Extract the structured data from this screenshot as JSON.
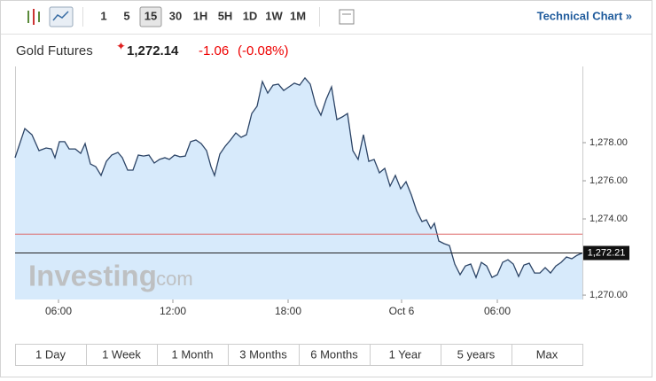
{
  "toolbar": {
    "intervals": [
      "1",
      "5",
      "15",
      "30",
      "1H",
      "5H",
      "1D",
      "1W",
      "1M"
    ],
    "selected": "15",
    "link": "Technical Chart »"
  },
  "header": {
    "name": "Gold Futures",
    "price": "1,272.14",
    "change": "-1.06",
    "change_percent": "(-0.08%)"
  },
  "watermark": {
    "brand": "Investing",
    "suffix": ".com"
  },
  "ranges": [
    "1 Day",
    "1 Week",
    "1 Month",
    "3 Months",
    "6 Months",
    "1 Year",
    "5 years",
    "Max"
  ],
  "chart_data": {
    "type": "area",
    "color": "#2c4466",
    "fill": "#d7eafb",
    "x": [
      0,
      11,
      19,
      27,
      35,
      41,
      45,
      50,
      56,
      61,
      68,
      74,
      79,
      85,
      91,
      97,
      103,
      109,
      116,
      121,
      127,
      133,
      139,
      145,
      151,
      157,
      163,
      169,
      174,
      180,
      186,
      192,
      198,
      204,
      210,
      216,
      221,
      225,
      231,
      237,
      243,
      249,
      255,
      261,
      267,
      273,
      279,
      285,
      291,
      297,
      303,
      309,
      315,
      321,
      327,
      333,
      339,
      345,
      351,
      357,
      363,
      369,
      375,
      381,
      387,
      393,
      399,
      405,
      411,
      417,
      423,
      429,
      435,
      441,
      447,
      453,
      459,
      464,
      469,
      473,
      478,
      484,
      490,
      496,
      502,
      508,
      514,
      520,
      526,
      532,
      538,
      544,
      550,
      556,
      562,
      568,
      574,
      580,
      586,
      592,
      598,
      604,
      610,
      616,
      622,
      628,
      634,
      640
    ],
    "values": [
      1277.21,
      1278.74,
      1278.42,
      1277.58,
      1277.72,
      1277.67,
      1277.21,
      1278.05,
      1278.05,
      1277.67,
      1277.67,
      1277.44,
      1277.95,
      1276.88,
      1276.74,
      1276.28,
      1277.02,
      1277.35,
      1277.49,
      1277.21,
      1276.56,
      1276.56,
      1277.35,
      1277.3,
      1277.35,
      1276.93,
      1277.12,
      1277.21,
      1277.12,
      1277.35,
      1277.26,
      1277.3,
      1278.05,
      1278.14,
      1277.95,
      1277.58,
      1276.74,
      1276.28,
      1277.4,
      1277.81,
      1278.14,
      1278.51,
      1278.28,
      1278.42,
      1279.53,
      1279.91,
      1281.21,
      1280.6,
      1281.02,
      1281.07,
      1280.74,
      1280.93,
      1281.12,
      1281.02,
      1281.4,
      1281.07,
      1280.0,
      1279.44,
      1280.28,
      1280.93,
      1279.21,
      1279.35,
      1279.53,
      1277.58,
      1277.12,
      1278.42,
      1277.02,
      1277.12,
      1276.42,
      1276.65,
      1275.72,
      1276.28,
      1275.58,
      1275.95,
      1275.26,
      1274.42,
      1273.86,
      1273.95,
      1273.49,
      1273.77,
      1272.84,
      1272.7,
      1272.6,
      1271.63,
      1271.07,
      1271.53,
      1271.63,
      1270.93,
      1271.72,
      1271.53,
      1270.93,
      1271.07,
      1271.72,
      1271.86,
      1271.63,
      1270.98,
      1271.58,
      1271.67,
      1271.16,
      1271.16,
      1271.44,
      1271.16,
      1271.53,
      1271.72,
      1272.0,
      1271.91,
      1272.09,
      1272.21
    ],
    "xlim": [
      0,
      640
    ],
    "xticks": [
      {
        "value": 49,
        "label": "06:00"
      },
      {
        "value": 178,
        "label": "12:00"
      },
      {
        "value": 308,
        "label": "18:00"
      },
      {
        "value": 436,
        "label": "Oct 6"
      },
      {
        "value": 544,
        "label": "06:00"
      }
    ],
    "ylim": [
      1269.77,
      1281.86
    ],
    "yticks": [
      {
        "value": 1270,
        "label": "1,270.00"
      },
      {
        "value": 1274,
        "label": "1,274.00"
      },
      {
        "value": 1276,
        "label": "1,276.00"
      },
      {
        "value": 1278,
        "label": "1,278.00"
      }
    ],
    "previous_close": 1273.2,
    "last_price": {
      "value": 1272.21,
      "label": "1,272.21"
    }
  }
}
